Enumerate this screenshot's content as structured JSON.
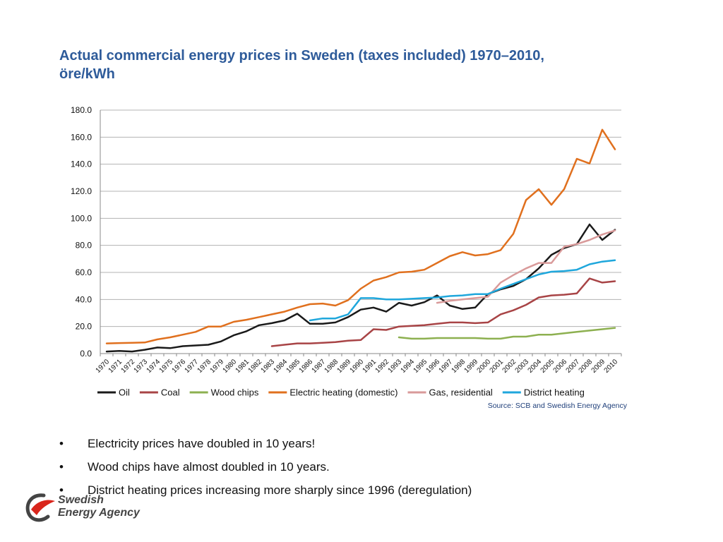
{
  "title": {
    "line1": "Actual commercial energy prices in Sweden (taxes included) 1970–2010,",
    "line2": "öre/kWh"
  },
  "source": "Source: SCB and Swedish Energy Agency",
  "bullets": [
    "Electricity prices have doubled in 10 years!",
    "Wood chips have almost doubled in 10 years.",
    "District heating prices increasing more sharply since 1996 (deregulation)"
  ],
  "bullet_glyph": "•",
  "logo": {
    "line1": "Swedish",
    "line2": "Energy Agency",
    "icon": "swirl-logo-icon"
  },
  "chart_data": {
    "type": "line",
    "title": "",
    "xlabel": "",
    "ylabel": "",
    "ylim": [
      0,
      180
    ],
    "yticks": [
      0,
      20,
      40,
      60,
      80,
      100,
      120,
      140,
      160,
      180
    ],
    "ytick_labels": [
      "0.0",
      "20.0",
      "40.0",
      "60.0",
      "80.0",
      "100.0",
      "120.0",
      "140.0",
      "160.0",
      "180.0"
    ],
    "grid": true,
    "legend_position": "bottom",
    "x": [
      "1970",
      "1971",
      "1972",
      "1973",
      "1974",
      "1975",
      "1976",
      "1977",
      "1978",
      "1979",
      "1980",
      "1981",
      "1982",
      "1983",
      "1984",
      "1985",
      "1986",
      "1987",
      "1988",
      "1989",
      "1990",
      "1991",
      "1992",
      "1993",
      "1994",
      "1995",
      "1996",
      "1997",
      "1998",
      "1999",
      "2000",
      "2001",
      "2002",
      "2003",
      "2004",
      "2005",
      "2006",
      "2007",
      "2008",
      "2009",
      "2010"
    ],
    "series": [
      {
        "name": "Oil",
        "color": "#1a1a1a",
        "values": [
          1.5,
          2,
          1.5,
          2.8,
          4.5,
          4,
          5.5,
          6,
          6.5,
          9,
          13.5,
          16.5,
          21,
          22.5,
          24.5,
          29.5,
          22,
          22,
          23,
          27,
          32.5,
          34,
          31,
          37.5,
          35.5,
          38,
          43,
          35.5,
          33,
          34,
          44,
          47.5,
          50,
          55,
          63,
          73,
          78,
          81,
          95.5,
          84,
          91.5
        ]
      },
      {
        "name": "Coal",
        "color": "#a84446",
        "values": [
          null,
          null,
          null,
          null,
          null,
          null,
          null,
          null,
          null,
          null,
          null,
          null,
          null,
          5.5,
          6.5,
          7.5,
          7.5,
          8,
          8.5,
          9.5,
          10,
          18,
          17.5,
          20,
          20.5,
          21,
          22,
          23,
          23,
          22.5,
          23,
          29,
          32,
          36,
          41.5,
          43,
          43.5,
          44.5,
          55.5,
          52.5,
          53.5
        ]
      },
      {
        "name": "Wood chips",
        "color": "#8db050",
        "values": [
          null,
          null,
          null,
          null,
          null,
          null,
          null,
          null,
          null,
          null,
          null,
          null,
          null,
          null,
          null,
          null,
          null,
          null,
          null,
          null,
          null,
          null,
          null,
          12,
          11,
          11,
          11.5,
          11.5,
          11.5,
          11.5,
          11,
          11,
          12.5,
          12.5,
          14,
          14,
          15,
          16,
          17,
          18,
          19
        ]
      },
      {
        "name": "Electric heating (domestic)",
        "color": "#e0701e",
        "values": [
          7.5,
          7.8,
          8,
          8.2,
          10.5,
          12,
          14,
          16,
          20,
          20,
          23.5,
          25,
          27,
          29,
          31,
          34,
          36.5,
          37,
          35.5,
          39.5,
          48,
          54,
          56.5,
          60,
          60.5,
          62,
          67,
          72,
          75,
          72.5,
          73.5,
          76.5,
          88.5,
          113.5,
          121.5,
          110,
          121.5,
          144,
          140.5,
          165.5,
          151
        ]
      },
      {
        "name": "Gas, residential",
        "color": "#d99a9a",
        "values": [
          null,
          null,
          null,
          null,
          null,
          null,
          null,
          null,
          null,
          null,
          null,
          null,
          null,
          null,
          null,
          null,
          null,
          null,
          null,
          null,
          null,
          null,
          null,
          null,
          null,
          null,
          37.5,
          39,
          40,
          41,
          42,
          52.5,
          58,
          63,
          67,
          67,
          79,
          81,
          84,
          88,
          91
        ]
      },
      {
        "name": "District heating",
        "color": "#1fa7dc",
        "values": [
          null,
          null,
          null,
          null,
          null,
          null,
          null,
          null,
          null,
          null,
          null,
          null,
          null,
          null,
          null,
          null,
          24.5,
          26,
          26,
          29,
          41,
          41,
          40,
          40,
          40.5,
          41,
          41.5,
          42.5,
          43,
          44,
          44,
          48,
          51.5,
          55,
          58.5,
          60.5,
          61,
          62,
          66,
          68,
          69
        ]
      }
    ]
  }
}
